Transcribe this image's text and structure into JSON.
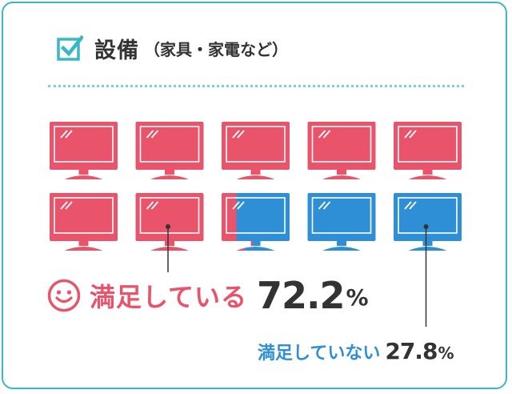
{
  "header": {
    "title": "設備",
    "subtitle": "（家具・家電など）"
  },
  "colors": {
    "accent": "#3ab7c6",
    "satisfied": "#e9546b",
    "unsatisfied": "#2f8fd6",
    "text": "#333333"
  },
  "chart_data": {
    "type": "pictogram",
    "icon": "monitor-icon",
    "icon_count": 10,
    "series": [
      {
        "name": "満足している",
        "value": 72.2,
        "unit": "%"
      },
      {
        "name": "満足していない",
        "value": 27.8,
        "unit": "%"
      }
    ]
  },
  "labels": {
    "satisfied_text": "満足している",
    "satisfied_value": "72.2",
    "unsatisfied_text": "満足していない",
    "unsatisfied_value": "27.8",
    "percent": "%"
  }
}
